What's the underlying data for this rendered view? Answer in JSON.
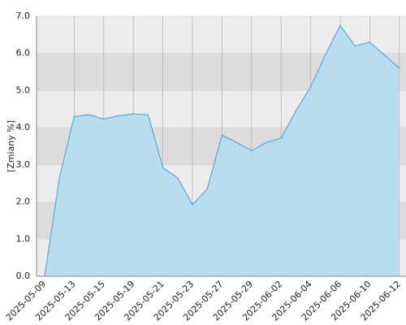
{
  "chart_data": {
    "type": "area",
    "y_label": "[Zmiany %]",
    "categories": [
      "2025-05-09",
      null,
      "2025-05-13",
      null,
      "2025-05-15",
      null,
      "2025-05-19",
      null,
      "2025-05-21",
      null,
      "2025-05-23",
      null,
      "2025-05-27",
      null,
      "2025-05-29",
      null,
      "2025-06-02",
      null,
      "2025-06-04",
      null,
      "2025-06-06",
      null,
      "2025-06-10",
      null,
      "2025-06-12"
    ],
    "values": [
      0,
      2.65,
      4.3,
      4.35,
      4.23,
      4.32,
      4.37,
      4.35,
      2.92,
      2.65,
      1.93,
      2.35,
      3.8,
      3.6,
      3.38,
      3.6,
      3.72,
      4.45,
      5.1,
      5.97,
      6.75,
      6.2,
      6.3,
      5.95,
      5.6
    ],
    "color": "#5aa7de",
    "fill": "#b3dcee",
    "ylim": [
      0,
      7
    ],
    "yticks": [
      {
        "value": 0,
        "label": "0.0"
      },
      {
        "value": 1,
        "label": "1.0"
      },
      {
        "value": 2,
        "label": "2.0"
      },
      {
        "value": 3,
        "label": "3.0"
      },
      {
        "value": 4,
        "label": "4.0"
      },
      {
        "value": 5,
        "label": "5.0"
      },
      {
        "value": 6,
        "label": "6.0"
      },
      {
        "value": 7,
        "label": "7.0"
      }
    ],
    "grid": true
  }
}
